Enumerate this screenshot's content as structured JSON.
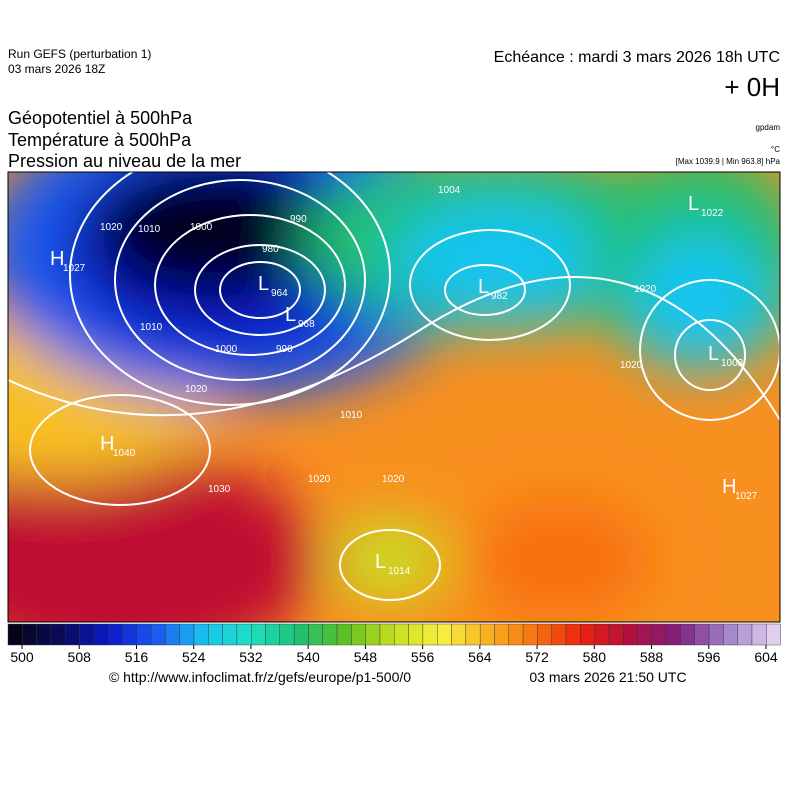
{
  "header": {
    "run": "Run GEFS (perturbation 1)",
    "run_date": "03 mars 2026 18Z",
    "valid": "Echéance : mardi 3 mars 2026 18h UTC",
    "lead": "+ 0H"
  },
  "fields": [
    "Géopotentiel à 500hPa",
    "Température à 500hPa",
    "Pression au niveau de la mer"
  ],
  "units": {
    "geopotential": "gpdam",
    "temperature": "°C",
    "pressure": "[Max 1039.9 | Min 963.8] hPa"
  },
  "map": {
    "pressure_centers": [
      {
        "type": "H",
        "value": 1027
      },
      {
        "type": "L",
        "value": 964
      },
      {
        "type": "L",
        "value": 968
      },
      {
        "type": "L",
        "value": 982
      },
      {
        "type": "L",
        "value": 1022
      },
      {
        "type": "L",
        "value": 1003
      },
      {
        "type": "H",
        "value": 1040
      },
      {
        "type": "H",
        "value": 1027
      },
      {
        "type": "L",
        "value": 1014
      }
    ],
    "isobar_labels": [
      1020,
      1010,
      1000,
      990,
      980,
      1010,
      1000,
      990,
      1020,
      1010,
      1020,
      1030,
      1020,
      1004,
      1020,
      1020
    ]
  },
  "colorbar": {
    "ticks": [
      500,
      508,
      516,
      524,
      532,
      540,
      548,
      556,
      564,
      572,
      580,
      588,
      596,
      604
    ],
    "colors": [
      "#05051a",
      "#0a0a60",
      "#0b1ac8",
      "#1a5cf0",
      "#19c4f0",
      "#1de0c0",
      "#20c070",
      "#60c020",
      "#c8e020",
      "#f8f040",
      "#f8b020",
      "#f87010",
      "#e82010",
      "#b01040",
      "#802080",
      "#a080c8",
      "#e0d0f0"
    ]
  },
  "footer": {
    "source": "© http://www.infoclimat.fr/z/gefs/europe/p1-500/0",
    "generated": "03 mars 2026 21:50 UTC"
  }
}
